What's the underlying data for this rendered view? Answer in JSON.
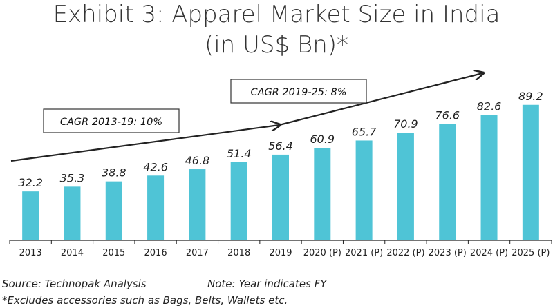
{
  "chart_data": {
    "type": "bar",
    "title_line1": "Exhibit 3: Apparel Market Size in India",
    "title_line2": "(in US$ Bn)*",
    "categories": [
      "2013",
      "2014",
      "2015",
      "2016",
      "2017",
      "2018",
      "2019",
      "2020 (P)",
      "2021 (P)",
      "2022 (P)",
      "2023 (P)",
      "2024 (P)",
      "2025 (P)"
    ],
    "values": [
      32.2,
      35.3,
      38.8,
      42.6,
      46.8,
      51.4,
      56.4,
      60.9,
      65.7,
      70.9,
      76.6,
      82.6,
      89.2
    ],
    "value_labels": [
      "32.2",
      "35.3",
      "38.8",
      "42.6",
      "46.8",
      "51.4",
      "56.4",
      "60.9",
      "65.7",
      "70.9",
      "76.6",
      "82.6",
      "89.2"
    ],
    "ylim": [
      0,
      100
    ],
    "bar_color": "#4FC4D6",
    "annotations": [
      {
        "text": "CAGR 2013-19: 10%"
      },
      {
        "text": "CAGR 2019-25: 8%"
      }
    ],
    "grid": false
  },
  "footer": {
    "source": "Source: Technopak Analysis",
    "note": "Note: Year indicates FY",
    "footnote": "*Excludes accessories such as Bags, Belts, Wallets etc."
  }
}
